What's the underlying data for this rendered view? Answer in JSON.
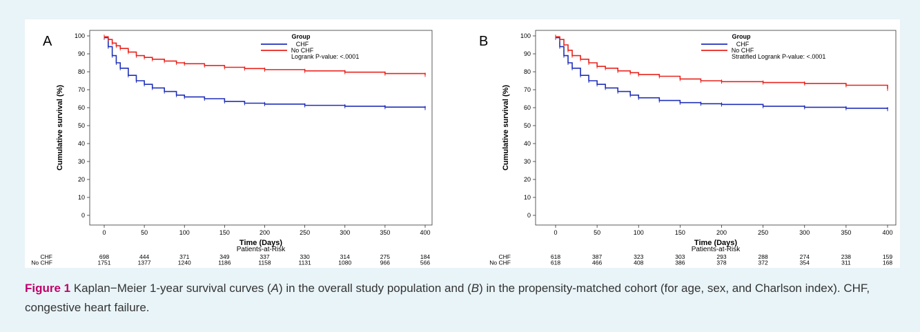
{
  "figure": {
    "label": "Figure 1",
    "caption_parts": [
      {
        "text": " Kaplan−Meier 1-year survival curves (",
        "italic": false
      },
      {
        "text": "A",
        "italic": true
      },
      {
        "text": ") in the overall study population and (",
        "italic": false
      },
      {
        "text": "B",
        "italic": true
      },
      {
        "text": ") in the propensity-matched cohort (for age, sex, and Charlson index). CHF, congestive heart failure.",
        "italic": false
      }
    ],
    "label_color": "#c0006a"
  },
  "chart_data": [
    {
      "type": "line",
      "panel_label": "A",
      "xlabel": "Time (Days)",
      "ylabel": "Cumulative survival (%)",
      "xlim": [
        0,
        400
      ],
      "ylim": [
        0,
        100
      ],
      "xticks": [
        0,
        50,
        100,
        150,
        200,
        250,
        300,
        350,
        400
      ],
      "yticks": [
        0,
        10,
        20,
        30,
        40,
        50,
        60,
        70,
        80,
        90,
        100
      ],
      "legend": {
        "title": "Group",
        "position": "top-right",
        "entries": [
          {
            "name": "CHF",
            "color": "#1f2fb8"
          },
          {
            "name": "No CHF",
            "color": "#e8231d"
          }
        ],
        "note": "Logrank P-value: <.0001"
      },
      "series": [
        {
          "name": "CHF",
          "color": "#1f2fb8",
          "x": [
            0,
            5,
            10,
            15,
            20,
            30,
            40,
            50,
            60,
            75,
            90,
            100,
            125,
            150,
            175,
            200,
            250,
            300,
            350,
            400
          ],
          "y": [
            99,
            94,
            89,
            85,
            82,
            78,
            75,
            73,
            71,
            69,
            67,
            66,
            65,
            63.5,
            62.5,
            62,
            61.3,
            60.8,
            60.3,
            59.8
          ]
        },
        {
          "name": "No CHF",
          "color": "#e8231d",
          "x": [
            0,
            5,
            10,
            15,
            20,
            30,
            40,
            50,
            60,
            75,
            90,
            100,
            125,
            150,
            175,
            200,
            250,
            300,
            350,
            400
          ],
          "y": [
            99.5,
            98,
            96,
            94.5,
            93,
            91,
            89,
            88,
            87,
            86,
            85,
            84.5,
            83.5,
            82.5,
            81.8,
            81.2,
            80.5,
            79.8,
            79,
            78.3
          ]
        }
      ],
      "at_risk": {
        "title": "Patients-at-Risk",
        "rows": [
          {
            "label": "CHF",
            "values": [
              "698",
              "444",
              "371",
              "349",
              "337",
              "330",
              "314",
              "275",
              "184"
            ]
          },
          {
            "label": "No CHF",
            "values": [
              "1751",
              "1377",
              "1240",
              "1186",
              "1158",
              "1131",
              "1080",
              "966",
              "566"
            ]
          }
        ]
      }
    },
    {
      "type": "line",
      "panel_label": "B",
      "xlabel": "Time (Days)",
      "ylabel": "Cumulative survival (%)",
      "xlim": [
        0,
        400
      ],
      "ylim": [
        0,
        100
      ],
      "xticks": [
        0,
        50,
        100,
        150,
        200,
        250,
        300,
        350,
        400
      ],
      "yticks": [
        0,
        10,
        20,
        30,
        40,
        50,
        60,
        70,
        80,
        90,
        100
      ],
      "legend": {
        "title": "Group",
        "position": "top-right",
        "entries": [
          {
            "name": "CHF",
            "color": "#1f2fb8"
          },
          {
            "name": "No CHF",
            "color": "#e8231d"
          }
        ],
        "note": "Stratified Logrank P-value: <.0001"
      },
      "series": [
        {
          "name": "CHF",
          "color": "#1f2fb8",
          "x": [
            0,
            5,
            10,
            15,
            20,
            30,
            40,
            50,
            60,
            75,
            90,
            100,
            125,
            150,
            175,
            200,
            250,
            300,
            350,
            400
          ],
          "y": [
            99,
            94,
            89,
            85,
            82,
            78,
            75,
            73,
            71,
            69,
            67,
            65.5,
            64,
            62.8,
            62.2,
            61.8,
            60.8,
            60.2,
            59.7,
            59.2
          ]
        },
        {
          "name": "No CHF",
          "color": "#e8231d",
          "x": [
            0,
            5,
            10,
            15,
            20,
            30,
            40,
            50,
            60,
            75,
            90,
            100,
            125,
            150,
            175,
            200,
            250,
            300,
            350,
            400
          ],
          "y": [
            99.5,
            98,
            95,
            92,
            89,
            87,
            85,
            83,
            82,
            80.5,
            79.5,
            78.5,
            77.5,
            76,
            75,
            74.5,
            74,
            73.5,
            72.5,
            70.5
          ]
        }
      ],
      "at_risk": {
        "title": "Patients-at-Risk",
        "rows": [
          {
            "label": "CHF",
            "values": [
              "618",
              "387",
              "323",
              "303",
              "293",
              "288",
              "274",
              "238",
              "159"
            ]
          },
          {
            "label": "No CHF",
            "values": [
              "618",
              "466",
              "408",
              "386",
              "378",
              "372",
              "354",
              "311",
              "168"
            ]
          }
        ]
      }
    }
  ]
}
